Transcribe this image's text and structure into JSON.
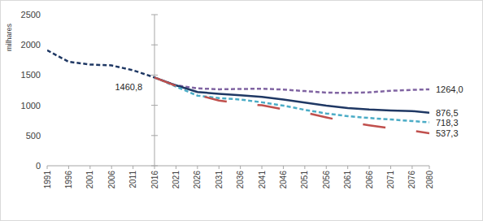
{
  "chart_data": {
    "type": "line",
    "y_label": "milhares",
    "x": [
      1991,
      1996,
      2001,
      2006,
      2011,
      2016,
      2021,
      2026,
      2031,
      2036,
      2041,
      2046,
      2051,
      2056,
      2061,
      2066,
      2071,
      2076,
      2080
    ],
    "xlim": [
      1991,
      2080
    ],
    "xticks": [
      1991,
      1996,
      2001,
      2006,
      2011,
      2016,
      2021,
      2026,
      2031,
      2036,
      2041,
      2046,
      2051,
      2056,
      2061,
      2066,
      2071,
      2076,
      2080
    ],
    "ylim": [
      0,
      2500
    ],
    "yticks": [
      0,
      500,
      1000,
      1500,
      2000,
      2500
    ],
    "grid": false,
    "series": [
      {
        "color": "#1f3864",
        "line_style": "dashed",
        "values": [
          1910,
          1720,
          1675,
          1660,
          1580,
          1460.8,
          null,
          null,
          null,
          null,
          null,
          null,
          null,
          null,
          null,
          null,
          null,
          null,
          null
        ]
      },
      {
        "color": "#8064a2",
        "line_style": "dashed",
        "values": [
          null,
          null,
          null,
          null,
          null,
          1460.8,
          1330,
          1280,
          1265,
          1270,
          1275,
          1260,
          1235,
          1210,
          1205,
          1215,
          1240,
          1255,
          1264.0
        ]
      },
      {
        "color": "#1f3864",
        "line_style": "solid",
        "values": [
          null,
          null,
          null,
          null,
          null,
          1460.8,
          1330,
          1220,
          1190,
          1165,
          1140,
          1095,
          1045,
          995,
          955,
          930,
          915,
          905,
          876.5
        ]
      },
      {
        "color": "#4bacc6",
        "line_style": "dashed",
        "values": [
          null,
          null,
          null,
          null,
          null,
          1460.8,
          1310,
          1160,
          1120,
          1095,
          1050,
          995,
          925,
          865,
          820,
          790,
          765,
          740,
          718.3
        ]
      },
      {
        "color": "#c0504d",
        "line_style": "long-dash",
        "values": [
          null,
          null,
          null,
          null,
          null,
          1460.8,
          1320,
          1170,
          1080,
          1030,
          1000,
          935,
          880,
          800,
          725,
          670,
          620,
          580,
          537.3
        ]
      }
    ],
    "annotations": [
      {
        "text": "1460,8",
        "x": 2010,
        "y": 1300
      },
      {
        "text": "1264,0",
        "x": 2080,
        "y": 1264.0
      },
      {
        "text": "876,5",
        "x": 2080,
        "y": 876.5
      },
      {
        "text": "718,3",
        "x": 2080,
        "y": 718.3
      },
      {
        "text": "537,3",
        "x": 2080,
        "y": 537.3
      }
    ]
  }
}
